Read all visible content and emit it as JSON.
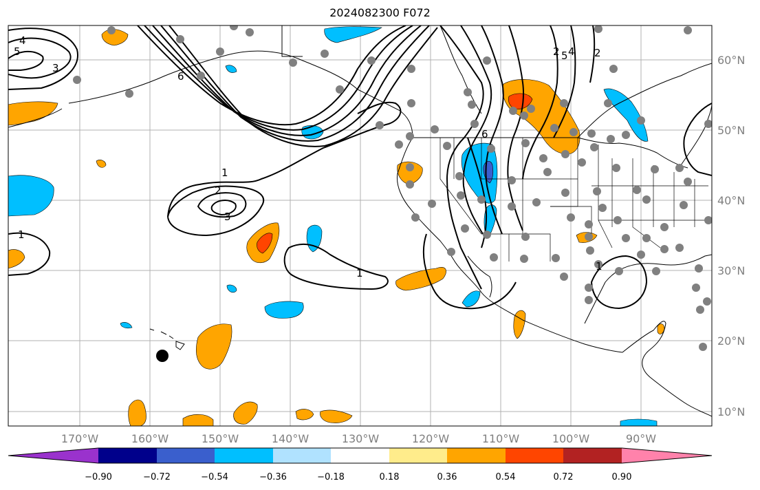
{
  "title": "2024082300 F072",
  "lon_labels": [
    "170°W",
    "160°W",
    "150°W",
    "140°W",
    "130°W",
    "120°W",
    "110°W",
    "100°W",
    "90°W"
  ],
  "lat_labels": [
    "60°N",
    "50°N",
    "40°N",
    "30°N",
    "20°N",
    "10°N"
  ],
  "colorbar": {
    "ticks": [
      "−0.90",
      "−0.72",
      "−0.54",
      "−0.36",
      "−0.18",
      "0.18",
      "0.36",
      "0.54",
      "0.72",
      "0.90"
    ],
    "colors": [
      "#9a32cd",
      "#00008b",
      "#3a5fcd",
      "#00bfff",
      "#b0e2ff",
      "#ffffff",
      "#ffec8b",
      "#ffa500",
      "#ff4500",
      "#b22222",
      "#ff82ab"
    ]
  },
  "contour_labels": [
    "4",
    "5",
    "3",
    "6",
    "1",
    "2",
    "3",
    "1",
    "1",
    "2",
    "5",
    "4",
    "2",
    "1",
    "6"
  ],
  "colors": {
    "land_outline": "#000000",
    "grid": "#b0b0b0",
    "station_marker": "#808080",
    "highlight_marker": "#000000"
  }
}
